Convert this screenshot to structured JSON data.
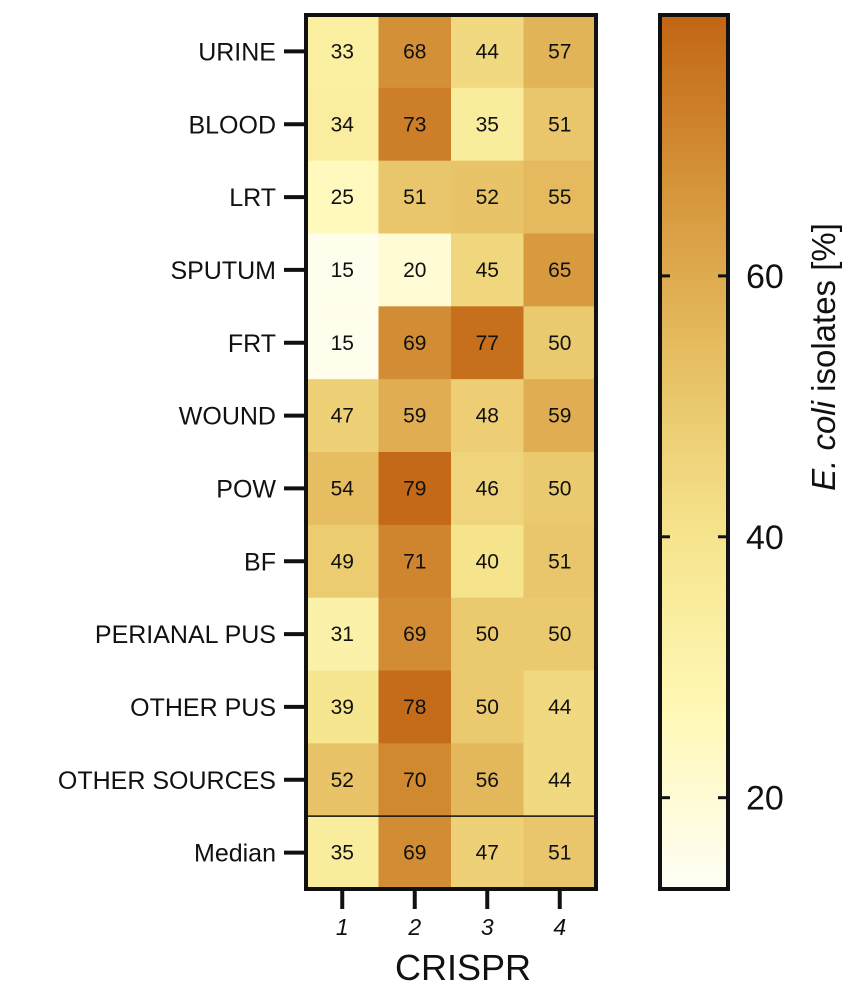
{
  "chart_data": {
    "type": "heatmap",
    "rows": [
      "URINE",
      "BLOOD",
      "LRT",
      "SPUTUM",
      "FRT",
      "WOUND",
      "POW",
      "BF",
      "PERIANAL PUS",
      "OTHER PUS",
      "OTHER SOURCES",
      "Median"
    ],
    "columns": [
      "1",
      "2",
      "3",
      "4"
    ],
    "values": [
      [
        33,
        68,
        44,
        57
      ],
      [
        34,
        73,
        35,
        51
      ],
      [
        25,
        51,
        52,
        55
      ],
      [
        15,
        20,
        45,
        65
      ],
      [
        15,
        69,
        77,
        50
      ],
      [
        47,
        59,
        48,
        59
      ],
      [
        54,
        79,
        46,
        50
      ],
      [
        49,
        71,
        40,
        51
      ],
      [
        31,
        69,
        50,
        50
      ],
      [
        39,
        78,
        50,
        44
      ],
      [
        52,
        70,
        56,
        44
      ],
      [
        35,
        69,
        47,
        51
      ]
    ],
    "xlabel": "CRISPR",
    "colorbar": {
      "label_italic": "E. coli",
      "label_rest": " isolates [%]",
      "ticks": [
        20,
        40,
        60
      ],
      "range": [
        13,
        80
      ],
      "colors": [
        "#fffef6",
        "#fff8b6",
        "#f6e58e",
        "#e7c064",
        "#d6953a",
        "#c26514"
      ]
    },
    "separator_before_row": "Median"
  }
}
